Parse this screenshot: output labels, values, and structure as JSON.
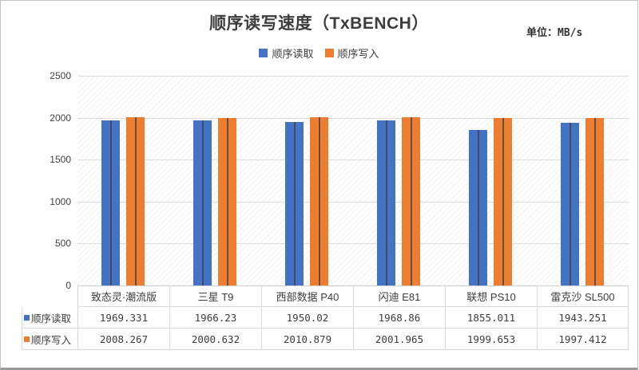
{
  "header": {
    "title": "顺序读写速度（TxBENCH）",
    "unit": "单位：MB/s"
  },
  "legend": [
    {
      "label": "顺序读取",
      "color": "#4472C4"
    },
    {
      "label": "顺序写入",
      "color": "#ED7D31"
    }
  ],
  "chart_data": {
    "type": "bar",
    "title": "顺序读写速度（TxBENCH）",
    "unit_label": "单位：MB/s",
    "categories": [
      "致态灵·潮流版",
      "三星 T9",
      "西部数据 P40",
      "闪迪 E81",
      "联想 PS10",
      "雷克沙 SL500"
    ],
    "series": [
      {
        "name": "顺序读取",
        "color": "#4472C4",
        "values": [
          1969.331,
          1966.23,
          1950.02,
          1968.86,
          1855.011,
          1943.251
        ]
      },
      {
        "name": "顺序写入",
        "color": "#ED7D31",
        "values": [
          2008.267,
          2000.632,
          2010.879,
          2001.965,
          1999.653,
          1997.412
        ]
      }
    ],
    "ylim": [
      0,
      2500
    ],
    "yticks": [
      0,
      500,
      1000,
      1500,
      2000,
      2500
    ],
    "grid": "horizontal",
    "legend_position": "top",
    "plot_background": "diagonal-hatch",
    "bar_center_stripe_color": "#4a4a4a",
    "data_table_shown": true
  }
}
